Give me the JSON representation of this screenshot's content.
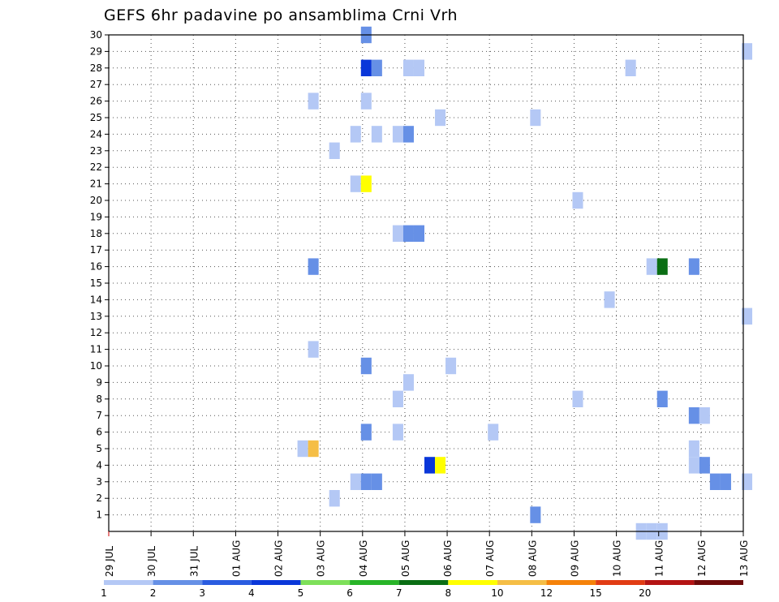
{
  "title": "GEFS 6hr padavine po ansamblima Crni Vrh",
  "chart_data": {
    "type": "heatmap",
    "title": "GEFS 6hr padavine po ansamblima Crni Vrh",
    "x_labels": [
      "29 JUL",
      "30 JUL",
      "31 JUL",
      "01 AUG",
      "02 AUG",
      "03 AUG",
      "04 AUG",
      "05 AUG",
      "06 AUG",
      "07 AUG",
      "08 AUG",
      "09 AUG",
      "10 AUG",
      "11 AUG",
      "12 AUG",
      "13 AUG"
    ],
    "y_labels": [
      "1",
      "2",
      "3",
      "4",
      "5",
      "6",
      "7",
      "8",
      "9",
      "10",
      "11",
      "12",
      "13",
      "14",
      "15",
      "16",
      "17",
      "18",
      "19",
      "20",
      "21",
      "22",
      "23",
      "24",
      "25",
      "26",
      "27",
      "28",
      "29",
      "30"
    ],
    "ylim": [
      0,
      30
    ],
    "grid": true,
    "colorbar": {
      "labels": [
        "1",
        "2",
        "3",
        "4",
        "5",
        "6",
        "7",
        "8",
        "10",
        "12",
        "15",
        "20"
      ],
      "colors": [
        "#b4c8f5",
        "#6690e6",
        "#2a5ce0",
        "#0a37d9",
        "#7ee05a",
        "#28b428",
        "#0a6e14",
        "#ffff00",
        "#f5be46",
        "#f5820a",
        "#e13c14",
        "#b41414",
        "#6e0a0a"
      ]
    },
    "cells": [
      {
        "day": "04 AUG",
        "step": 0,
        "member": 30,
        "color": "#6690e6"
      },
      {
        "day": "13 AUG",
        "step": 0,
        "member": 29,
        "color": "#b4c8f5"
      },
      {
        "day": "04 AUG",
        "step": 0,
        "member": 28,
        "color": "#0a37d9"
      },
      {
        "day": "04 AUG",
        "step": 1,
        "member": 28,
        "color": "#6690e6"
      },
      {
        "day": "05 AUG",
        "step": 0,
        "member": 28,
        "color": "#b4c8f5"
      },
      {
        "day": "05 AUG",
        "step": 1,
        "member": 28,
        "color": "#b4c8f5"
      },
      {
        "day": "10 AUG",
        "step": 1,
        "member": 28,
        "color": "#b4c8f5"
      },
      {
        "day": "03 AUG",
        "step": -1,
        "member": 26,
        "color": "#b4c8f5"
      },
      {
        "day": "04 AUG",
        "step": 0,
        "member": 26,
        "color": "#b4c8f5"
      },
      {
        "day": "06 AUG",
        "step": -1,
        "member": 25,
        "color": "#b4c8f5"
      },
      {
        "day": "08 AUG",
        "step": 0,
        "member": 25,
        "color": "#b4c8f5"
      },
      {
        "day": "04 AUG",
        "step": -1,
        "member": 24,
        "color": "#b4c8f5"
      },
      {
        "day": "04 AUG",
        "step": 1,
        "member": 24,
        "color": "#b4c8f5"
      },
      {
        "day": "05 AUG",
        "step": -1,
        "member": 24,
        "color": "#b4c8f5"
      },
      {
        "day": "05 AUG",
        "step": 0,
        "member": 24,
        "color": "#6690e6"
      },
      {
        "day": "03 AUG",
        "step": 1,
        "member": 23,
        "color": "#b4c8f5"
      },
      {
        "day": "04 AUG",
        "step": -1,
        "member": 21,
        "color": "#b4c8f5"
      },
      {
        "day": "04 AUG",
        "step": 0,
        "member": 21,
        "color": "#ffff00"
      },
      {
        "day": "09 AUG",
        "step": 0,
        "member": 20,
        "color": "#b4c8f5"
      },
      {
        "day": "05 AUG",
        "step": -1,
        "member": 18,
        "color": "#b4c8f5"
      },
      {
        "day": "05 AUG",
        "step": 0,
        "member": 18,
        "color": "#6690e6"
      },
      {
        "day": "05 AUG",
        "step": 1,
        "member": 18,
        "color": "#6690e6"
      },
      {
        "day": "03 AUG",
        "step": -1,
        "member": 16,
        "color": "#6690e6"
      },
      {
        "day": "11 AUG",
        "step": -1,
        "member": 16,
        "color": "#b4c8f5"
      },
      {
        "day": "11 AUG",
        "step": 0,
        "member": 16,
        "color": "#0a6e14"
      },
      {
        "day": "12 AUG",
        "step": -1,
        "member": 16,
        "color": "#6690e6"
      },
      {
        "day": "10 AUG",
        "step": -1,
        "member": 14,
        "color": "#b4c8f5"
      },
      {
        "day": "13 AUG",
        "step": 0,
        "member": 13,
        "color": "#b4c8f5"
      },
      {
        "day": "03 AUG",
        "step": -1,
        "member": 11,
        "color": "#b4c8f5"
      },
      {
        "day": "04 AUG",
        "step": 0,
        "member": 10,
        "color": "#6690e6"
      },
      {
        "day": "06 AUG",
        "step": 0,
        "member": 10,
        "color": "#b4c8f5"
      },
      {
        "day": "05 AUG",
        "step": 0,
        "member": 9,
        "color": "#b4c8f5"
      },
      {
        "day": "05 AUG",
        "step": -1,
        "member": 8,
        "color": "#b4c8f5"
      },
      {
        "day": "09 AUG",
        "step": 0,
        "member": 8,
        "color": "#b4c8f5"
      },
      {
        "day": "11 AUG",
        "step": 0,
        "member": 8,
        "color": "#6690e6"
      },
      {
        "day": "12 AUG",
        "step": -1,
        "member": 7,
        "color": "#6690e6"
      },
      {
        "day": "12 AUG",
        "step": 0,
        "member": 7,
        "color": "#b4c8f5"
      },
      {
        "day": "04 AUG",
        "step": 0,
        "member": 6,
        "color": "#6690e6"
      },
      {
        "day": "05 AUG",
        "step": -1,
        "member": 6,
        "color": "#b4c8f5"
      },
      {
        "day": "07 AUG",
        "step": 0,
        "member": 6,
        "color": "#b4c8f5"
      },
      {
        "day": "03 AUG",
        "step": -2,
        "member": 5,
        "color": "#b4c8f5"
      },
      {
        "day": "03 AUG",
        "step": -1,
        "member": 5,
        "color": "#f5be46"
      },
      {
        "day": "12 AUG",
        "step": -1,
        "member": 5,
        "color": "#b4c8f5"
      },
      {
        "day": "06 AUG",
        "step": -2,
        "member": 4,
        "color": "#0a37d9"
      },
      {
        "day": "06 AUG",
        "step": -1,
        "member": 4,
        "color": "#ffff00"
      },
      {
        "day": "12 AUG",
        "step": -1,
        "member": 4,
        "color": "#b4c8f5"
      },
      {
        "day": "12 AUG",
        "step": 0,
        "member": 4,
        "color": "#6690e6"
      },
      {
        "day": "04 AUG",
        "step": -1,
        "member": 3,
        "color": "#b4c8f5"
      },
      {
        "day": "04 AUG",
        "step": 0,
        "member": 3,
        "color": "#6690e6"
      },
      {
        "day": "04 AUG",
        "step": 1,
        "member": 3,
        "color": "#6690e6"
      },
      {
        "day": "12 AUG",
        "step": 1,
        "member": 3,
        "color": "#6690e6"
      },
      {
        "day": "12 AUG",
        "step": 2,
        "member": 3,
        "color": "#6690e6"
      },
      {
        "day": "13 AUG",
        "step": 0,
        "member": 3,
        "color": "#b4c8f5"
      },
      {
        "day": "03 AUG",
        "step": 1,
        "member": 2,
        "color": "#b4c8f5"
      },
      {
        "day": "08 AUG",
        "step": 0,
        "member": 1,
        "color": "#6690e6"
      },
      {
        "day": "11 AUG",
        "step": -2,
        "member": 0,
        "color": "#b4c8f5"
      },
      {
        "day": "11 AUG",
        "step": -1,
        "member": 0,
        "color": "#b4c8f5"
      },
      {
        "day": "11 AUG",
        "step": 0,
        "member": 0,
        "color": "#b4c8f5"
      }
    ]
  }
}
